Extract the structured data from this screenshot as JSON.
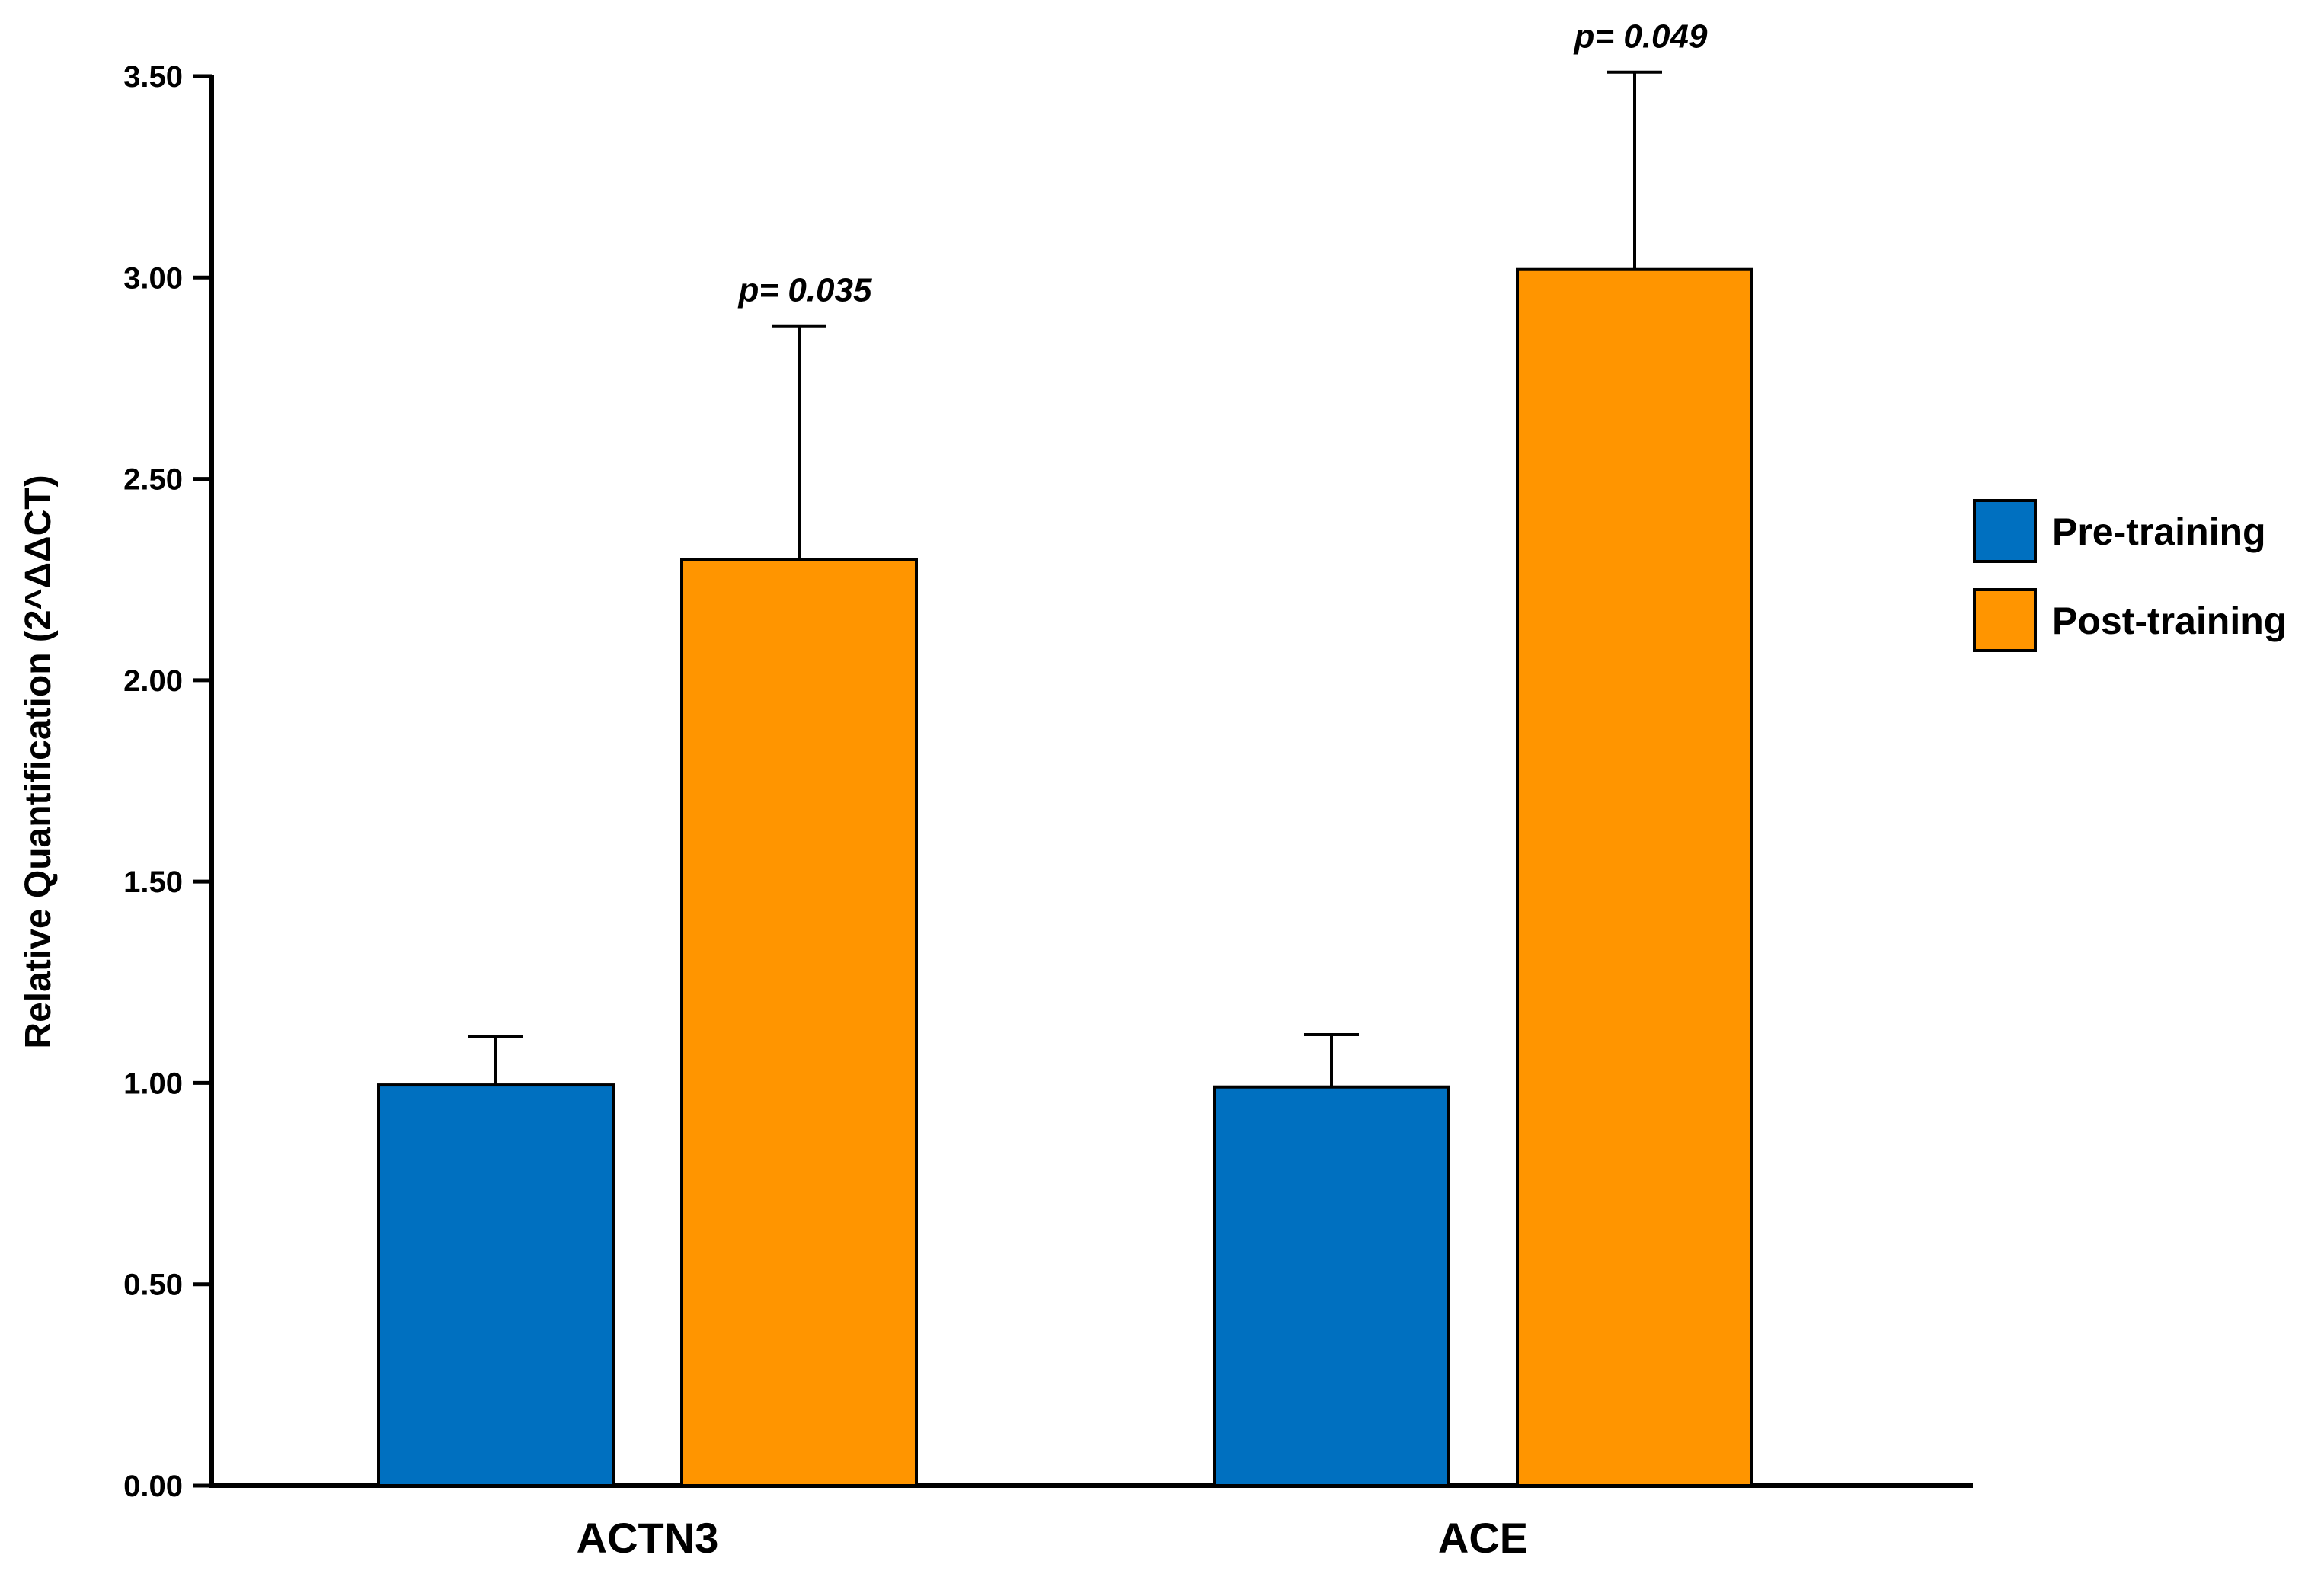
{
  "chart_data": {
    "type": "bar",
    "title": "",
    "xlabel": "",
    "ylabel": "Relative Quantification (2^ΔΔCT)",
    "ylim": [
      0,
      3.5
    ],
    "yticks": [
      0,
      0.5,
      1.0,
      1.5,
      2.0,
      2.5,
      3.0,
      3.5
    ],
    "ytick_labels": [
      "0.00",
      "0.50",
      "1.00",
      "1.50",
      "2.00",
      "2.50",
      "3.00",
      "3.50"
    ],
    "categories": [
      "ACTN3",
      "ACE"
    ],
    "series": [
      {
        "name": "Pre-training",
        "color": "#0070c0",
        "values": [
          0.995,
          0.99
        ],
        "error_upper": [
          0.12,
          0.13
        ]
      },
      {
        "name": "Post-training",
        "color": "#ff9500",
        "values": [
          2.3,
          3.02
        ],
        "error_upper": [
          0.58,
          0.49
        ]
      }
    ],
    "annotations": [
      {
        "category": "ACTN3",
        "series": "Post-training",
        "text": "p= 0.035"
      },
      {
        "category": "ACE",
        "series": "Post-training",
        "text": "p= 0.049"
      }
    ],
    "error_bars": "upper-only",
    "legend": {
      "position": "right",
      "entries": [
        "Pre-training",
        "Post-training"
      ]
    },
    "grid": false
  }
}
